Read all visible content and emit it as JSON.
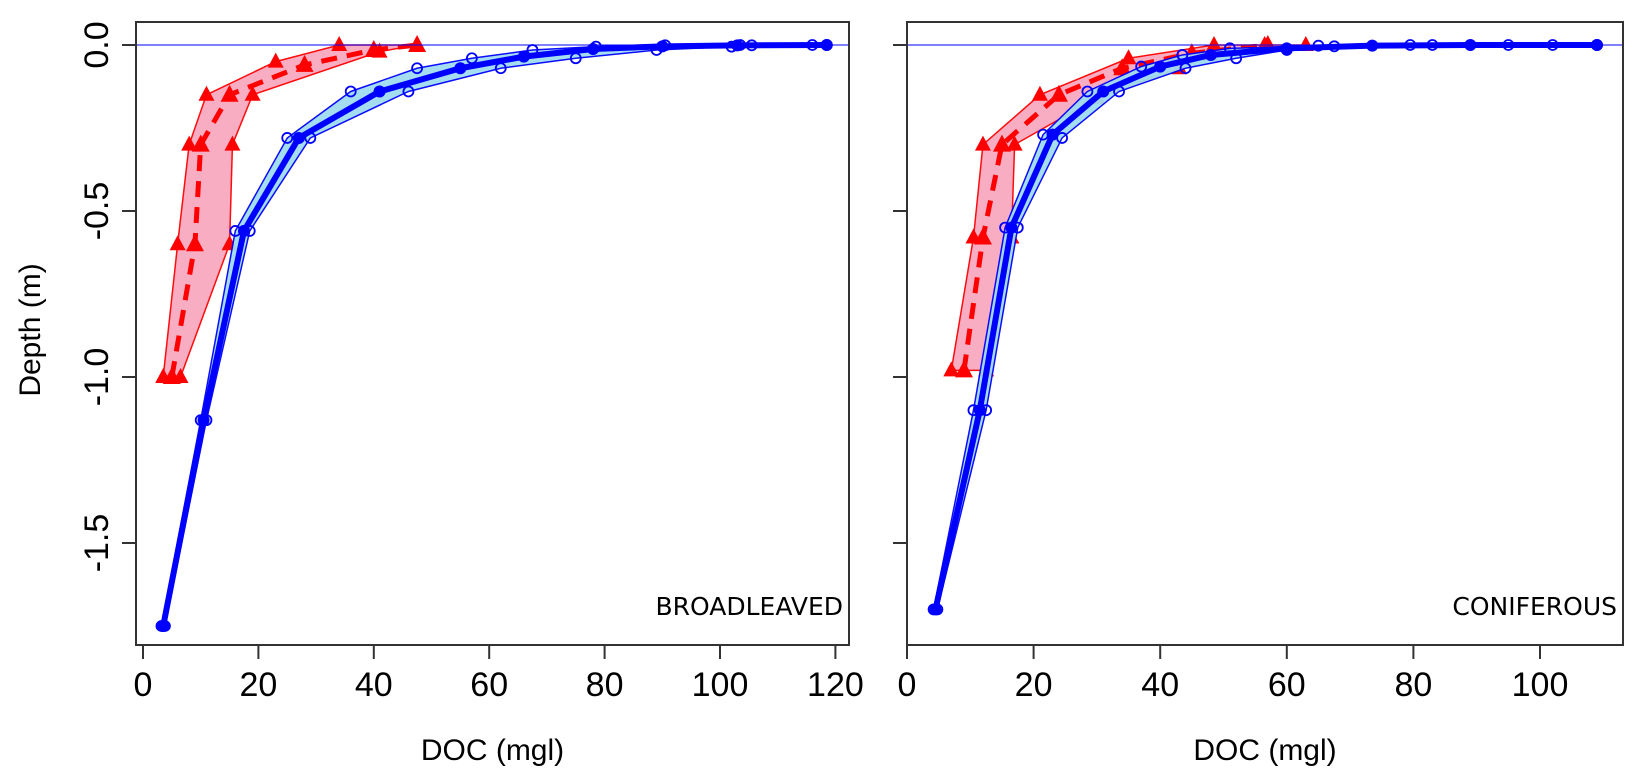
{
  "chart_data": [
    {
      "type": "line",
      "panel_label": "BROADLEAVED",
      "xlabel": "DOC (mgl)",
      "ylabel": "Depth (m)",
      "xlim": [
        0,
        123
      ],
      "ylim": [
        -1.83,
        0.07
      ],
      "xticks": [
        0,
        20,
        40,
        60,
        80,
        100,
        120
      ],
      "xtick_labels": [
        "0",
        "20",
        "40",
        "60",
        "80",
        "100",
        "120"
      ],
      "yticks": [
        0.0,
        -0.5,
        -1.0,
        -1.5
      ],
      "ytick_labels": [
        "0.0",
        "-0.5",
        "-1.0",
        "-1.5"
      ],
      "grid": false,
      "series": [
        {
          "name": "red-mean",
          "color": "#ff0000",
          "band_color": "#f9a9c0",
          "marker": "triangle",
          "line": "dashed",
          "points": [
            [
              5,
              -1.0
            ],
            [
              9,
              -0.6
            ],
            [
              10,
              -0.3
            ],
            [
              15,
              -0.15
            ],
            [
              28,
              -0.06
            ],
            [
              40,
              -0.015
            ],
            [
              47.5,
              0
            ]
          ],
          "band_lower": [
            [
              3.5,
              -1.0
            ],
            [
              6,
              -0.6
            ],
            [
              8,
              -0.3
            ],
            [
              11,
              -0.15
            ],
            [
              23,
              -0.05
            ],
            [
              34,
              0
            ],
            [
              47.5,
              0
            ]
          ],
          "band_upper": [
            [
              6.5,
              -1.0
            ],
            [
              15,
              -0.6
            ],
            [
              15.5,
              -0.3
            ],
            [
              19,
              -0.15
            ],
            [
              41,
              -0.02
            ],
            [
              47.5,
              0
            ]
          ]
        },
        {
          "name": "blue-mean",
          "color": "#0000ff",
          "band_color": "#9fdcef",
          "marker": "filled-circle",
          "line": "solid",
          "points": [
            [
              3.5,
              -1.75
            ],
            [
              10.5,
              -1.13
            ],
            [
              17.5,
              -0.56
            ],
            [
              27,
              -0.28
            ],
            [
              41,
              -0.14
            ],
            [
              55,
              -0.07
            ],
            [
              66,
              -0.035
            ],
            [
              78,
              -0.012
            ],
            [
              90,
              -0.004
            ],
            [
              103,
              -0.001
            ],
            [
              118.5,
              0
            ]
          ],
          "band_lower": [
            [
              3.2,
              -1.75
            ],
            [
              10,
              -1.13
            ],
            [
              16,
              -0.56
            ],
            [
              25,
              -0.28
            ],
            [
              36,
              -0.14
            ],
            [
              47.5,
              -0.07
            ],
            [
              57,
              -0.04
            ],
            [
              67.5,
              -0.015
            ],
            [
              78.5,
              -0.005
            ],
            [
              90.5,
              -0.001
            ],
            [
              103.5,
              0
            ],
            [
              118.5,
              0
            ]
          ],
          "band_upper": [
            [
              3.8,
              -1.75
            ],
            [
              11,
              -1.13
            ],
            [
              18.5,
              -0.56
            ],
            [
              29,
              -0.28
            ],
            [
              46,
              -0.14
            ],
            [
              62,
              -0.07
            ],
            [
              75,
              -0.04
            ],
            [
              89,
              -0.015
            ],
            [
              102,
              -0.005
            ],
            [
              105.5,
              -0.001
            ],
            [
              116,
              0
            ],
            [
              118.5,
              0
            ]
          ]
        }
      ]
    },
    {
      "type": "line",
      "panel_label": "CONIFEROUS",
      "xlabel": "DOC (mgl)",
      "ylabel": "",
      "xlim": [
        0,
        113
      ],
      "ylim": [
        -1.83,
        0.07
      ],
      "xticks": [
        0,
        20,
        40,
        60,
        80,
        100
      ],
      "xtick_labels": [
        "0",
        "20",
        "40",
        "60",
        "80",
        "100"
      ],
      "yticks": [
        0.0,
        -0.5,
        -1.0,
        -1.5
      ],
      "ytick_labels": [
        "",
        "",
        "",
        ""
      ],
      "grid": false,
      "series": [
        {
          "name": "red-mean",
          "color": "#ff0000",
          "band_color": "#f9a9c0",
          "marker": "triangle",
          "line": "dashed",
          "points": [
            [
              9,
              -0.98
            ],
            [
              12,
              -0.58
            ],
            [
              15,
              -0.3
            ],
            [
              24,
              -0.15
            ],
            [
              34,
              -0.07
            ],
            [
              45,
              -0.025
            ],
            [
              57,
              0
            ]
          ],
          "band_lower": [
            [
              7,
              -0.98
            ],
            [
              10.5,
              -0.58
            ],
            [
              12,
              -0.3
            ],
            [
              21,
              -0.15
            ],
            [
              35,
              -0.04
            ],
            [
              48.5,
              0
            ],
            [
              56.5,
              0
            ]
          ],
          "band_upper": [
            [
              12.5,
              -0.98
            ],
            [
              16.5,
              -0.58
            ],
            [
              17,
              -0.3
            ],
            [
              30,
              -0.16
            ],
            [
              43,
              -0.07
            ],
            [
              48,
              -0.03
            ],
            [
              63,
              0
            ]
          ]
        },
        {
          "name": "blue-mean",
          "color": "#0000ff",
          "band_color": "#9fdcef",
          "marker": "filled-circle",
          "line": "solid",
          "points": [
            [
              4.5,
              -1.7
            ],
            [
              11.5,
              -1.1
            ],
            [
              16.5,
              -0.55
            ],
            [
              23,
              -0.27
            ],
            [
              31,
              -0.14
            ],
            [
              40,
              -0.065
            ],
            [
              48,
              -0.03
            ],
            [
              60,
              -0.01
            ],
            [
              73.5,
              -0.002
            ],
            [
              89,
              0
            ],
            [
              109,
              0
            ]
          ],
          "band_lower": [
            [
              4.2,
              -1.7
            ],
            [
              10.5,
              -1.1
            ],
            [
              15.5,
              -0.55
            ],
            [
              21.5,
              -0.27
            ],
            [
              28.5,
              -0.14
            ],
            [
              37,
              -0.065
            ],
            [
              43.5,
              -0.03
            ],
            [
              51,
              -0.01
            ],
            [
              65,
              -0.002
            ],
            [
              79.5,
              0
            ],
            [
              95,
              0
            ],
            [
              109,
              0
            ]
          ],
          "band_upper": [
            [
              4.8,
              -1.7
            ],
            [
              12.5,
              -1.1
            ],
            [
              17.5,
              -0.55
            ],
            [
              24.5,
              -0.28
            ],
            [
              33.5,
              -0.14
            ],
            [
              44,
              -0.07
            ],
            [
              52,
              -0.04
            ],
            [
              60,
              -0.015
            ],
            [
              67.5,
              -0.004
            ],
            [
              83,
              0
            ],
            [
              102,
              0
            ],
            [
              109,
              0
            ]
          ]
        }
      ]
    }
  ]
}
